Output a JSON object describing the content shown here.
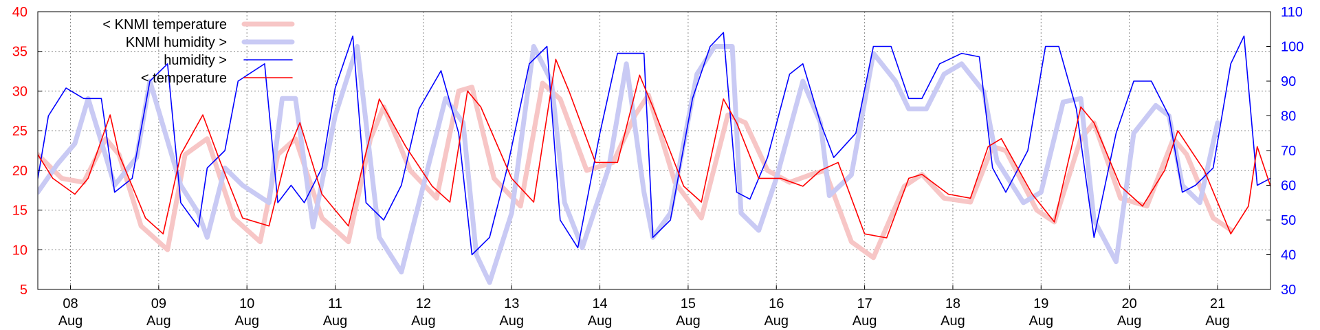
{
  "colors": {
    "knmi_temperature": "#f7c6c6",
    "knmi_humidity": "#c9caf4",
    "humidity": "#0000ff",
    "temperature": "#ff0000",
    "left_axis_text": "#ff0000",
    "right_axis_text": "#0000ff",
    "grid": "#888888",
    "frame": "#000000"
  },
  "chart_data": {
    "type": "line",
    "title": "",
    "xlabel": "",
    "left_ylim": [
      5,
      40
    ],
    "right_ylim": [
      30,
      110
    ],
    "left_yticks": [
      "40",
      "35",
      "30",
      "25",
      "20",
      "15",
      "10",
      "5"
    ],
    "right_yticks": [
      "110",
      "100",
      "90",
      "80",
      "70",
      "60",
      "50",
      "40",
      "30"
    ],
    "x_range_days": [
      7.63,
      21.6
    ],
    "x_ticks": [
      {
        "day": "08",
        "month": "Aug"
      },
      {
        "day": "09",
        "month": "Aug"
      },
      {
        "day": "10",
        "month": "Aug"
      },
      {
        "day": "11",
        "month": "Aug"
      },
      {
        "day": "12",
        "month": "Aug"
      },
      {
        "day": "13",
        "month": "Aug"
      },
      {
        "day": "14",
        "month": "Aug"
      },
      {
        "day": "15",
        "month": "Aug"
      },
      {
        "day": "16",
        "month": "Aug"
      },
      {
        "day": "17",
        "month": "Aug"
      },
      {
        "day": "18",
        "month": "Aug"
      },
      {
        "day": "19",
        "month": "Aug"
      },
      {
        "day": "20",
        "month": "Aug"
      },
      {
        "day": "21",
        "month": "Aug"
      }
    ],
    "grid": true,
    "legend_position": "top-left",
    "series": [
      {
        "name": "< KNMI temperature",
        "axis": "left",
        "x": [
          7.63,
          7.9,
          8.15,
          8.4,
          8.55,
          8.8,
          9.1,
          9.3,
          9.55,
          9.85,
          10.15,
          10.35,
          10.55,
          10.85,
          11.15,
          11.4,
          11.55,
          11.85,
          12.15,
          12.4,
          12.55,
          12.8,
          13.1,
          13.35,
          13.55,
          13.85,
          14.15,
          14.4,
          14.55,
          14.85,
          15.15,
          15.45,
          15.65,
          15.9,
          16.15,
          16.4,
          16.55,
          16.85,
          17.1,
          17.45,
          17.65,
          17.9,
          18.2,
          18.45,
          18.6,
          18.95,
          19.15,
          19.45,
          19.6,
          19.9,
          20.2,
          20.5,
          20.65,
          20.95,
          21.15
        ],
        "y": [
          22,
          19,
          18.5,
          24,
          22,
          13,
          10,
          22,
          24,
          14,
          11,
          22,
          24,
          14,
          11,
          24,
          28,
          20,
          16.5,
          30,
          30.5,
          19,
          15.5,
          31,
          29,
          20,
          21,
          27,
          29.5,
          18.5,
          14,
          27,
          26,
          20,
          18.5,
          19.5,
          20,
          11,
          9,
          18,
          19.5,
          16.5,
          16,
          23,
          22.5,
          15,
          13.5,
          24,
          26,
          16.5,
          15.5,
          24,
          22,
          14,
          12.5
        ]
      },
      {
        "name": "KNMI humidity >",
        "axis": "right",
        "x": [
          7.63,
          7.85,
          8.05,
          8.2,
          8.5,
          8.75,
          8.9,
          9.25,
          9.45,
          9.55,
          9.75,
          9.95,
          10.25,
          10.4,
          10.55,
          10.75,
          11.0,
          11.25,
          11.5,
          11.75,
          11.95,
          12.25,
          12.45,
          12.6,
          12.75,
          13.0,
          13.25,
          13.45,
          13.6,
          13.8,
          14.1,
          14.3,
          14.5,
          14.6,
          14.8,
          15.1,
          15.3,
          15.5,
          15.6,
          15.8,
          16.0,
          16.3,
          16.5,
          16.6,
          16.85,
          17.1,
          17.35,
          17.5,
          17.7,
          17.9,
          18.1,
          18.35,
          18.5,
          18.65,
          18.8,
          19.0,
          19.25,
          19.45,
          19.6,
          19.85,
          20.05,
          20.3,
          20.45,
          20.6,
          20.8,
          21.0
        ],
        "y": [
          58,
          66,
          72,
          85,
          60,
          68,
          90,
          60,
          52,
          45,
          65,
          60,
          55,
          85,
          85,
          48,
          80,
          100,
          45,
          35,
          55,
          85,
          78,
          40,
          32,
          52,
          100,
          90,
          55,
          42,
          65,
          95,
          58,
          45,
          52,
          92,
          100,
          100,
          52,
          47,
          62,
          90,
          78,
          57,
          63,
          98,
          90,
          82,
          82,
          92,
          95,
          87,
          67,
          61,
          55,
          58,
          84,
          85,
          50,
          38,
          75,
          83,
          80,
          60,
          55,
          78
        ]
      },
      {
        "name": "humidity >",
        "axis": "right",
        "x": [
          7.63,
          7.75,
          7.95,
          8.15,
          8.35,
          8.5,
          8.7,
          8.9,
          9.1,
          9.25,
          9.45,
          9.55,
          9.75,
          9.9,
          10.2,
          10.35,
          10.5,
          10.65,
          10.85,
          11.0,
          11.2,
          11.35,
          11.55,
          11.75,
          11.95,
          12.2,
          12.4,
          12.55,
          12.75,
          12.95,
          13.2,
          13.4,
          13.55,
          13.75,
          14.0,
          14.2,
          14.35,
          14.5,
          14.6,
          14.8,
          15.05,
          15.25,
          15.4,
          15.55,
          15.7,
          15.9,
          16.15,
          16.3,
          16.5,
          16.65,
          16.9,
          17.1,
          17.3,
          17.5,
          17.65,
          17.85,
          18.1,
          18.3,
          18.45,
          18.6,
          18.85,
          19.05,
          19.2,
          19.4,
          19.6,
          19.85,
          20.05,
          20.25,
          20.45,
          20.6,
          20.75,
          20.95,
          21.15,
          21.3,
          21.45,
          21.6
        ],
        "y": [
          62,
          80,
          88,
          85,
          85,
          58,
          62,
          90,
          95,
          55,
          48,
          65,
          70,
          90,
          95,
          55,
          60,
          55,
          65,
          88,
          103,
          55,
          50,
          60,
          82,
          93,
          75,
          40,
          45,
          65,
          95,
          100,
          50,
          42,
          75,
          98,
          98,
          98,
          45,
          50,
          85,
          100,
          104,
          58,
          56,
          68,
          92,
          95,
          78,
          68,
          75,
          100,
          100,
          85,
          85,
          95,
          98,
          97,
          65,
          58,
          70,
          100,
          100,
          82,
          45,
          75,
          90,
          90,
          80,
          58,
          60,
          65,
          95,
          103,
          60,
          62
        ]
      },
      {
        "name": "< temperature",
        "axis": "left",
        "x": [
          7.63,
          7.8,
          8.05,
          8.2,
          8.45,
          8.55,
          8.85,
          9.05,
          9.25,
          9.5,
          9.7,
          9.95,
          10.25,
          10.45,
          10.6,
          10.85,
          11.15,
          11.3,
          11.5,
          11.8,
          12.1,
          12.3,
          12.5,
          12.65,
          13.0,
          13.25,
          13.5,
          13.65,
          13.95,
          14.2,
          14.45,
          14.6,
          14.95,
          15.15,
          15.4,
          15.55,
          15.8,
          16.05,
          16.3,
          16.5,
          16.7,
          17.0,
          17.25,
          17.5,
          17.65,
          17.95,
          18.2,
          18.4,
          18.55,
          18.9,
          19.15,
          19.45,
          19.6,
          19.9,
          20.15,
          20.4,
          20.55,
          20.85,
          21.15,
          21.35,
          21.45,
          21.6
        ],
        "y": [
          22,
          19,
          17,
          19,
          27,
          22,
          14,
          12,
          22,
          27,
          21,
          14,
          13,
          22,
          26,
          17,
          13,
          20,
          29,
          23,
          18,
          16,
          30,
          28,
          19,
          16,
          34,
          30,
          21,
          21,
          32,
          28,
          18,
          16,
          29,
          26,
          19,
          19,
          18,
          20,
          21,
          12,
          11.5,
          19,
          19.5,
          17,
          16.5,
          23,
          24,
          17,
          13.5,
          28,
          26,
          18,
          15.5,
          20,
          25,
          20,
          12,
          15.5,
          23,
          18
        ]
      }
    ]
  }
}
